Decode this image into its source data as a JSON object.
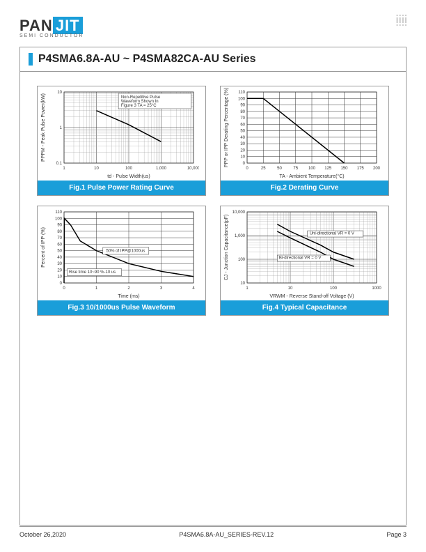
{
  "logo": {
    "pre": "PAN",
    "highlight": "JIT",
    "sub": "SEMI CONDUCTOR"
  },
  "title": "P4SMA6.8A-AU ~ P4SMA82CA-AU Series",
  "fig1": {
    "caption": "Fig.1 Pulse Power Rating Curve",
    "type": "loglog-line",
    "xlabel": "td - Pulse Width(us)",
    "ylabel": "PPPM - Peak Pulse Power(kW)",
    "x_ticks": [
      1,
      10,
      100,
      1000,
      10000
    ],
    "x_tick_labels": [
      "1",
      "10",
      "100",
      "1,000",
      "10,000"
    ],
    "y_ticks": [
      0.1,
      1,
      10
    ],
    "y_tick_labels": [
      "0.1",
      "1",
      "10"
    ],
    "data": [
      [
        10,
        3
      ],
      [
        100,
        1.2
      ],
      [
        1000,
        0.4
      ]
    ],
    "annotation": "Non-Repetitive Pulse Waveform Shown In Figure 3 TA = 25°C",
    "line_color": "#000000",
    "line_width": 1.5,
    "grid_color": "#333333",
    "bg": "#ffffff"
  },
  "fig2": {
    "caption": "Fig.2 Derating Curve",
    "type": "linear-line",
    "xlabel": "TA - Ambient Temperature(°C)",
    "ylabel": "PPP or IPP Derating Percentage (%)",
    "x_ticks": [
      0,
      25,
      50,
      75,
      100,
      125,
      150,
      175,
      200
    ],
    "y_ticks": [
      0,
      10,
      20,
      30,
      40,
      50,
      60,
      70,
      80,
      90,
      100,
      110
    ],
    "data": [
      [
        0,
        100
      ],
      [
        25,
        100
      ],
      [
        150,
        0
      ]
    ],
    "line_color": "#000000",
    "line_width": 1.5,
    "grid_color": "#333333",
    "bg": "#ffffff"
  },
  "fig3": {
    "caption": "Fig.3 10/1000us Pulse Waveform",
    "type": "linear-line",
    "xlabel": "Time (ms)",
    "ylabel": "Percent of IPP (%)",
    "x_ticks": [
      0,
      1,
      2,
      3,
      4
    ],
    "y_ticks": [
      0,
      10,
      20,
      30,
      40,
      50,
      60,
      70,
      80,
      90,
      100,
      110
    ],
    "data": [
      [
        0,
        0
      ],
      [
        0.01,
        100
      ],
      [
        0.2,
        90
      ],
      [
        0.5,
        65
      ],
      [
        1,
        50
      ],
      [
        2,
        30
      ],
      [
        3,
        18
      ],
      [
        4,
        10
      ]
    ],
    "annotation1": "50% of IPP@1000us",
    "annotation2": "Rise time 10~90 %-10 us",
    "line_color": "#000000",
    "line_width": 1.5,
    "grid_color": "#333333",
    "bg": "#ffffff"
  },
  "fig4": {
    "caption": "Fig.4 Typical Capacitance",
    "type": "loglog-line",
    "xlabel": "VRWM - Reverse Stand-off Voltage (V)",
    "ylabel": "CJ - Junction Capacitance(pF)",
    "x_ticks": [
      1,
      10,
      100,
      1000
    ],
    "x_tick_labels": [
      "1",
      "10",
      "100",
      "1000"
    ],
    "y_ticks": [
      10,
      100,
      1000,
      10000
    ],
    "y_tick_labels": [
      "10",
      "100",
      "1,000",
      "10,000"
    ],
    "series": [
      {
        "label": "Uni-directional VR = 0 V",
        "data": [
          [
            5,
            3000
          ],
          [
            10,
            1500
          ],
          [
            50,
            400
          ],
          [
            100,
            200
          ],
          [
            300,
            100
          ]
        ]
      },
      {
        "label": "Bi-directional VR = 0 V",
        "data": [
          [
            5,
            1500
          ],
          [
            10,
            800
          ],
          [
            50,
            200
          ],
          [
            100,
            100
          ],
          [
            300,
            50
          ]
        ]
      }
    ],
    "line_color": "#000000",
    "line_width": 1.5,
    "grid_color": "#333333",
    "bg": "#ffffff"
  },
  "footer": {
    "date": "October 26,2020",
    "doc": "P4SMA6.8A-AU_SERIES-REV.12",
    "page": "Page 3"
  }
}
